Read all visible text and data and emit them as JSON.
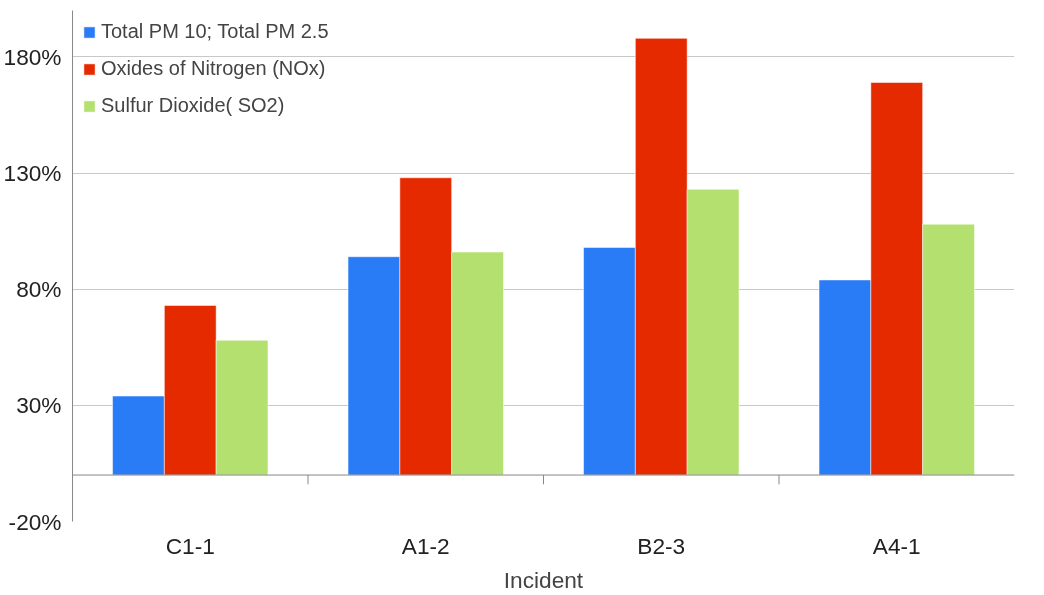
{
  "chart_data": {
    "type": "bar",
    "xlabel": "Incident",
    "categories": [
      "C1-1",
      "A1-2",
      "B2-3",
      "A4-1"
    ],
    "series": [
      {
        "name": "Total PM 10; Total PM 2.5",
        "color": "#2a7cf6",
        "values": [
          34,
          94,
          98,
          84
        ]
      },
      {
        "name": "Oxides of Nitrogen (NOx)",
        "color": "#e62a00",
        "values": [
          73,
          128,
          188,
          169
        ]
      },
      {
        "name": "Sulfur Dioxide( SO2)",
        "color": "#b3e06e",
        "values": [
          58,
          96,
          123,
          108
        ]
      }
    ],
    "ylim": [
      -20,
      200
    ],
    "yticks": [
      {
        "value": -20,
        "label": "-20%"
      },
      {
        "value": 30,
        "label": "30%"
      },
      {
        "value": 80,
        "label": "80%"
      },
      {
        "value": 130,
        "label": "130%"
      },
      {
        "value": 180,
        "label": "180%"
      }
    ],
    "grid": "y",
    "legend": "top left"
  }
}
